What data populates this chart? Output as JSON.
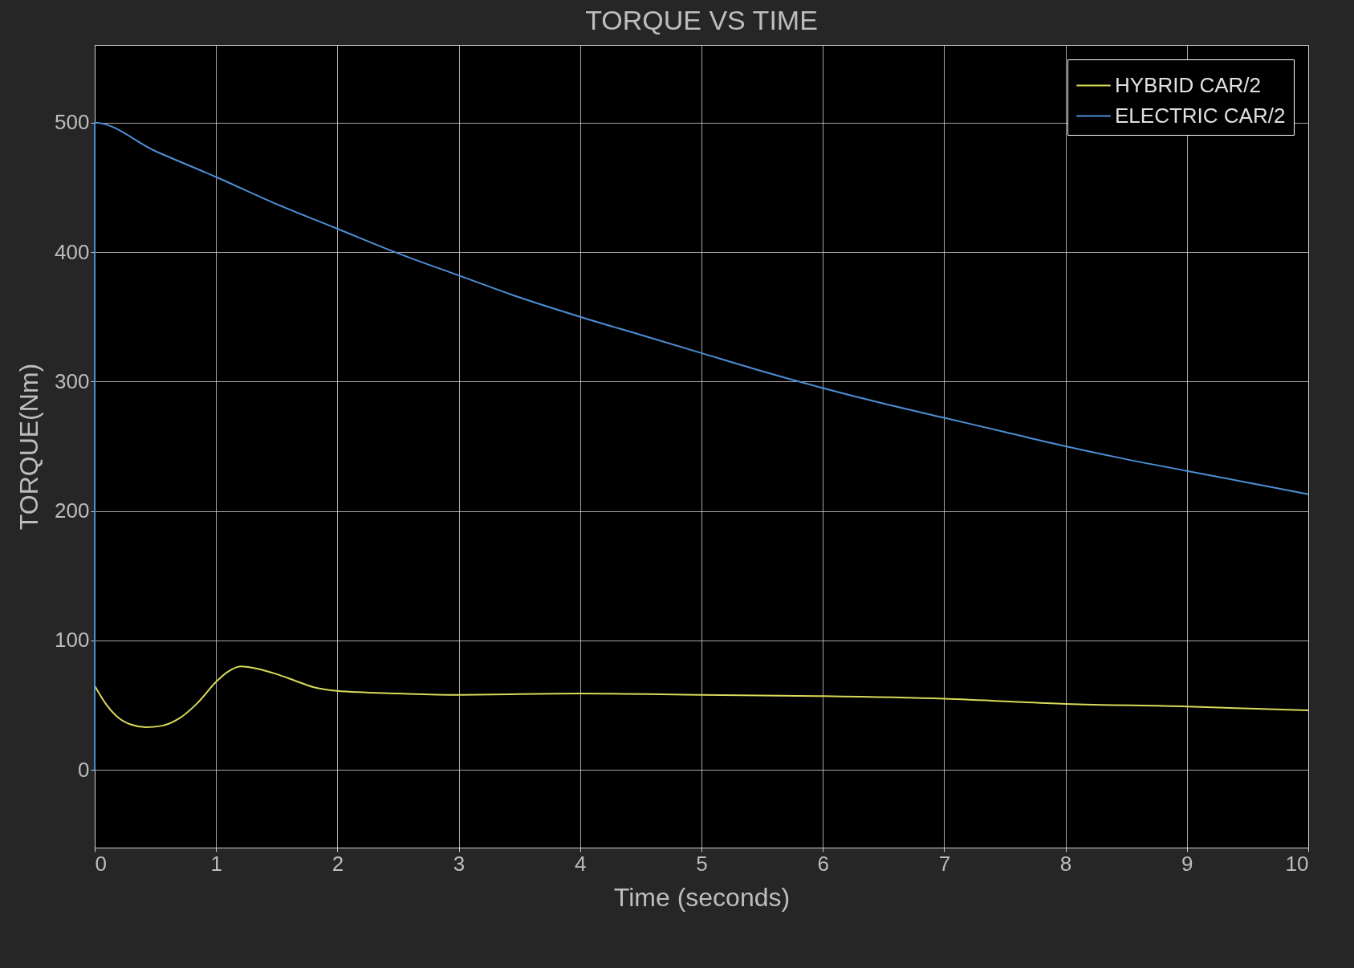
{
  "chart_data": {
    "type": "line",
    "title": "TORQUE VS TIME",
    "xlabel": "Time (seconds)",
    "ylabel": "TORQUE(Nm)",
    "xlim": [
      0,
      10
    ],
    "xticks": [
      0,
      1,
      2,
      3,
      4,
      5,
      6,
      7,
      8,
      9,
      10
    ],
    "ylim": [
      -60,
      560
    ],
    "yticks": [
      0,
      100,
      200,
      300,
      400,
      500
    ],
    "grid": true,
    "legend": "top right",
    "line_style": "solid",
    "series": [
      {
        "name": "HYBRID CAR/2",
        "color": "#d9d95a",
        "x": [
          0,
          0.1,
          0.2,
          0.3,
          0.42,
          0.55,
          0.7,
          0.85,
          1,
          1.1,
          1.2,
          1.35,
          1.5,
          1.65,
          1.8,
          2,
          2.5,
          3,
          4,
          5,
          6,
          7,
          8,
          9,
          10
        ],
        "values": [
          65,
          50,
          40,
          35,
          33,
          34,
          40,
          52,
          68,
          76,
          80,
          78,
          74,
          69,
          64,
          61,
          59,
          58,
          59,
          58,
          57,
          55,
          51,
          49,
          46
        ]
      },
      {
        "name": "ELECTRIC CAR/2",
        "color": "#4d8fd6",
        "x": [
          0,
          0,
          0.5,
          1,
          1.5,
          2,
          2.5,
          3,
          3.5,
          4,
          4.5,
          5,
          5.5,
          6,
          6.5,
          7,
          7.5,
          8,
          8.5,
          9,
          9.5,
          10
        ],
        "values": [
          0,
          500,
          478,
          458,
          437,
          418,
          399,
          382,
          365,
          350,
          336,
          322,
          308,
          295,
          283,
          272,
          261,
          250,
          240,
          231,
          222,
          213
        ]
      }
    ]
  }
}
